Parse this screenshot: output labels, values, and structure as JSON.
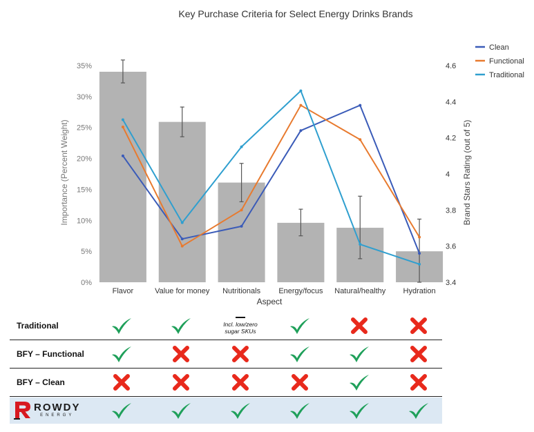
{
  "chart_data": {
    "type": "bar+line",
    "title": "Key Purchase Criteria for Select Energy Drinks Brands",
    "xlabel": "Aspect",
    "ylabel_left": "Importance (Percent Weight)",
    "ylabel_right": "Brand Stars Rating (out of 5)",
    "categories": [
      "Flavor",
      "Value for money",
      "Nutritionals",
      "Energy/focus",
      "Natural/healthy",
      "Hydration"
    ],
    "ylim_left": [
      0,
      0.35
    ],
    "ylim_right": [
      3.4,
      4.6
    ],
    "yticks_left": [
      "0%",
      "5%",
      "10%",
      "15%",
      "20%",
      "25%",
      "30%",
      "35%"
    ],
    "yticks_right": [
      "3.4",
      "3.6",
      "3.8",
      "4",
      "4.2",
      "4.4",
      "4.6"
    ],
    "bars": {
      "values": [
        0.34,
        0.259,
        0.161,
        0.096,
        0.088,
        0.05
      ],
      "error_low": [
        0.322,
        0.235,
        0.13,
        0.075,
        0.038,
        0.0
      ],
      "error_high": [
        0.359,
        0.283,
        0.192,
        0.118,
        0.139,
        0.102
      ],
      "color": "#b3b3b3"
    },
    "series": [
      {
        "name": "Clean",
        "color": "#3a5bb8",
        "values": [
          4.1,
          3.64,
          3.71,
          4.24,
          4.38,
          3.56
        ]
      },
      {
        "name": "Functional",
        "color": "#e87a2e",
        "values": [
          4.26,
          3.6,
          3.8,
          4.38,
          4.19,
          3.65
        ]
      },
      {
        "name": "Traditional",
        "color": "#2f9fcf",
        "values": [
          4.3,
          3.73,
          4.15,
          4.46,
          3.61,
          3.5
        ]
      }
    ],
    "legend_position": "top-right",
    "grid": false
  },
  "matrix": {
    "rows": [
      {
        "label": "Traditional",
        "values": [
          "check",
          "check",
          "note",
          "check",
          "cross",
          "cross"
        ]
      },
      {
        "label": "BFY – Functional",
        "values": [
          "check",
          "cross",
          "cross",
          "check",
          "check",
          "cross"
        ]
      },
      {
        "label": "BFY – Clean",
        "values": [
          "cross",
          "cross",
          "cross",
          "cross",
          "check",
          "cross"
        ]
      }
    ],
    "note_lines": [
      "Incl. low/zero",
      "sugar SKUs"
    ],
    "brand_row": {
      "logo_text": "ROWDY",
      "logo_subtext": "ENERGY",
      "values": [
        "check",
        "check",
        "check",
        "check",
        "check",
        "check"
      ]
    }
  },
  "colors": {
    "check": "#1fa05a",
    "cross": "#e8291c",
    "brand_row_bg": "#dce8f3",
    "logo_red": "#d71920"
  }
}
